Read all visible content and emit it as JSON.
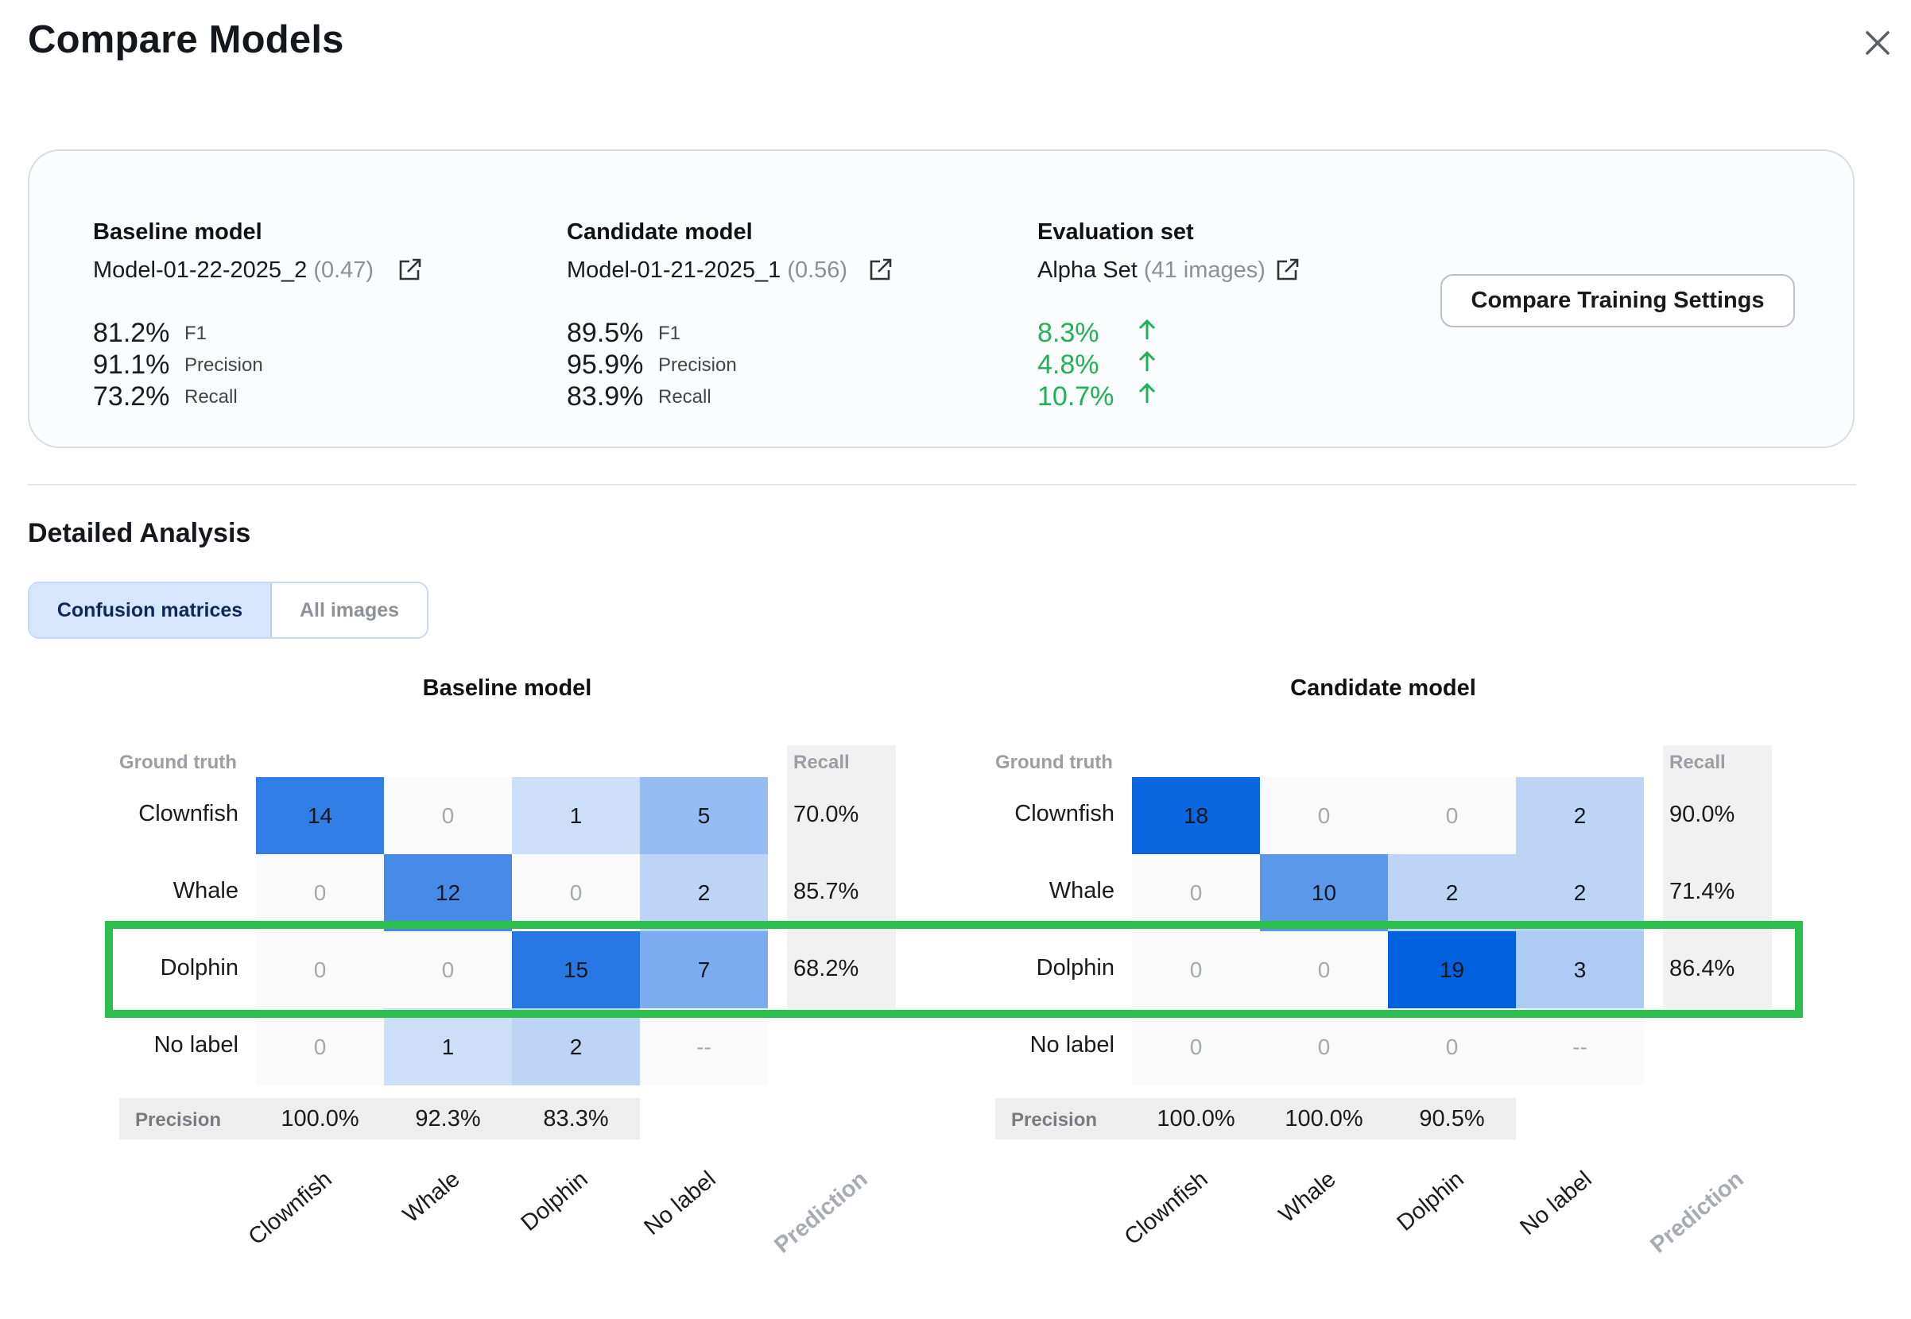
{
  "page": {
    "title": "Compare Models"
  },
  "summary": {
    "baseline": {
      "heading": "Baseline model",
      "name": "Model-01-22-2025_2",
      "threshold": "(0.47)",
      "metrics": [
        {
          "value": "81.2%",
          "label": "F1"
        },
        {
          "value": "91.1%",
          "label": "Precision"
        },
        {
          "value": "73.2%",
          "label": "Recall"
        }
      ]
    },
    "candidate": {
      "heading": "Candidate model",
      "name": "Model-01-21-2025_1",
      "threshold": "(0.56)",
      "metrics": [
        {
          "value": "89.5%",
          "label": "F1"
        },
        {
          "value": "95.9%",
          "label": "Precision"
        },
        {
          "value": "83.9%",
          "label": "Recall"
        }
      ]
    },
    "evaluation": {
      "heading": "Evaluation set",
      "name": "Alpha Set",
      "count": "(41 images)",
      "deltas": [
        "8.3%",
        "4.8%",
        "10.7%"
      ],
      "delta_color": "#1fb257"
    },
    "compare_button": "Compare Training Settings"
  },
  "analysis": {
    "title": "Detailed Analysis",
    "tabs": [
      {
        "label": "Confusion matrices",
        "active": true
      },
      {
        "label": "All images",
        "active": false
      }
    ]
  },
  "matrices": {
    "ground_truth_label": "Ground truth",
    "recall_label": "Recall",
    "precision_label": "Precision",
    "prediction_label": "Prediction",
    "classes": [
      "Clownfish",
      "Whale",
      "Dolphin",
      "No label"
    ],
    "highlight_color": "#2dbf4e",
    "baseline": {
      "title": "Baseline model",
      "rows": [
        [
          "14",
          "0",
          "1",
          "5"
        ],
        [
          "0",
          "12",
          "0",
          "2"
        ],
        [
          "0",
          "0",
          "15",
          "7"
        ],
        [
          "0",
          "1",
          "2",
          "--"
        ]
      ],
      "recall": [
        "70.0%",
        "85.7%",
        "68.2%"
      ],
      "precision": [
        "100.0%",
        "92.3%",
        "83.3%"
      ]
    },
    "candidate": {
      "title": "Candidate model",
      "rows": [
        [
          "18",
          "0",
          "0",
          "2"
        ],
        [
          "0",
          "10",
          "2",
          "2"
        ],
        [
          "0",
          "0",
          "19",
          "3"
        ],
        [
          "0",
          "0",
          "0",
          "--"
        ]
      ],
      "recall": [
        "90.0%",
        "71.4%",
        "86.4%"
      ],
      "precision": [
        "100.0%",
        "100.0%",
        "90.5%"
      ]
    }
  }
}
